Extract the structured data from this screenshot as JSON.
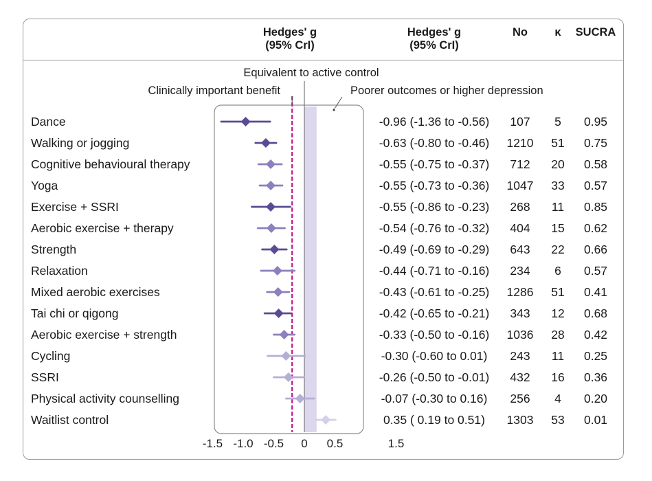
{
  "headers": {
    "plot_title_line1": "Hedges' g",
    "plot_title_line2": "(95% CrI)",
    "col_estimate_line1": "Hedges' g",
    "col_estimate_line2": "(95% CrI)",
    "col_no": "No",
    "col_kappa": "κ",
    "col_sucra": "SUCRA"
  },
  "annotations": {
    "equivalent": "Equivalent to active control",
    "clinically_important": "Clinically important benefit",
    "poorer": "Poorer outcomes or higher depression"
  },
  "colors": {
    "dark": "#5b4a94",
    "mid": "#8e7fbd",
    "light": "#b7aed6",
    "lightest": "#d6cfe8",
    "band": "#dcd7ec",
    "benefit_line": "#c2188b"
  },
  "chart_data": {
    "type": "forest",
    "xlim": [
      -1.5,
      1.5
    ],
    "xticks": [
      "-1.5",
      "-1.0",
      "-0.5",
      "0",
      "0.5",
      "1.5"
    ],
    "xtick_values": [
      -1.5,
      -1.0,
      -0.5,
      0,
      0.5,
      1.5
    ],
    "clinically_important_benefit": -0.2,
    "equivalence_band": [
      0,
      0.2
    ],
    "rows": [
      {
        "label": "Dance",
        "g": -0.96,
        "lo": -1.36,
        "hi": -0.56,
        "ci_text": "-0.96 (-1.36 to -0.56)",
        "no": "107",
        "k": "5",
        "sucra": "0.95",
        "shade": "dark"
      },
      {
        "label": "Walking or jogging",
        "g": -0.63,
        "lo": -0.8,
        "hi": -0.46,
        "ci_text": "-0.63 (-0.80 to -0.46)",
        "no": "1210",
        "k": "51",
        "sucra": "0.75",
        "shade": "dark"
      },
      {
        "label": "Cognitive behavioural therapy",
        "g": -0.55,
        "lo": -0.75,
        "hi": -0.37,
        "ci_text": "-0.55 (-0.75 to -0.37)",
        "no": "712",
        "k": "20",
        "sucra": "0.58",
        "shade": "mid"
      },
      {
        "label": "Yoga",
        "g": -0.55,
        "lo": -0.73,
        "hi": -0.36,
        "ci_text": "-0.55 (-0.73 to -0.36)",
        "no": "1047",
        "k": "33",
        "sucra": "0.57",
        "shade": "mid"
      },
      {
        "label": "Exercise + SSRI",
        "g": -0.55,
        "lo": -0.86,
        "hi": -0.23,
        "ci_text": "-0.55 (-0.86 to -0.23)",
        "no": "268",
        "k": "11",
        "sucra": "0.85",
        "shade": "dark"
      },
      {
        "label": "Aerobic exercise + therapy",
        "g": -0.54,
        "lo": -0.76,
        "hi": -0.32,
        "ci_text": "-0.54 (-0.76 to -0.32)",
        "no": "404",
        "k": "15",
        "sucra": "0.62",
        "shade": "mid"
      },
      {
        "label": "Strength",
        "g": -0.49,
        "lo": -0.69,
        "hi": -0.29,
        "ci_text": "-0.49 (-0.69 to -0.29)",
        "no": "643",
        "k": "22",
        "sucra": "0.66",
        "shade": "dark"
      },
      {
        "label": "Relaxation",
        "g": -0.44,
        "lo": -0.71,
        "hi": -0.16,
        "ci_text": "-0.44 (-0.71 to -0.16)",
        "no": "234",
        "k": "6",
        "sucra": "0.57",
        "shade": "mid"
      },
      {
        "label": "Mixed aerobic exercises",
        "g": -0.43,
        "lo": -0.61,
        "hi": -0.25,
        "ci_text": "-0.43 (-0.61 to -0.25)",
        "no": "1286",
        "k": "51",
        "sucra": "0.41",
        "shade": "mid"
      },
      {
        "label": "Tai chi or qigong",
        "g": -0.42,
        "lo": -0.65,
        "hi": -0.21,
        "ci_text": "-0.42 (-0.65 to -0.21)",
        "no": "343",
        "k": "12",
        "sucra": "0.68",
        "shade": "dark"
      },
      {
        "label": "Aerobic exercise + strength",
        "g": -0.33,
        "lo": -0.5,
        "hi": -0.16,
        "ci_text": "-0.33 (-0.50 to -0.16)",
        "no": "1036",
        "k": "28",
        "sucra": "0.42",
        "shade": "mid"
      },
      {
        "label": "Cycling",
        "g": -0.3,
        "lo": -0.6,
        "hi": 0.01,
        "ci_text": "-0.30 (-0.60 to  0.01)",
        "no": "243",
        "k": "11",
        "sucra": "0.25",
        "shade": "light"
      },
      {
        "label": "SSRI",
        "g": -0.26,
        "lo": -0.5,
        "hi": -0.01,
        "ci_text": "-0.26 (-0.50 to -0.01)",
        "no": "432",
        "k": "16",
        "sucra": "0.36",
        "shade": "light"
      },
      {
        "label": "Physical activity counselling",
        "g": -0.07,
        "lo": -0.3,
        "hi": 0.16,
        "ci_text": "-0.07 (-0.30 to  0.16)",
        "no": "256",
        "k": "4",
        "sucra": "0.20",
        "shade": "light"
      },
      {
        "label": "Waitlist control",
        "g": 0.35,
        "lo": 0.19,
        "hi": 0.51,
        "ci_text": "0.35 ( 0.19 to  0.51)",
        "no": "1303",
        "k": "53",
        "sucra": "0.01",
        "shade": "lightest"
      }
    ]
  }
}
